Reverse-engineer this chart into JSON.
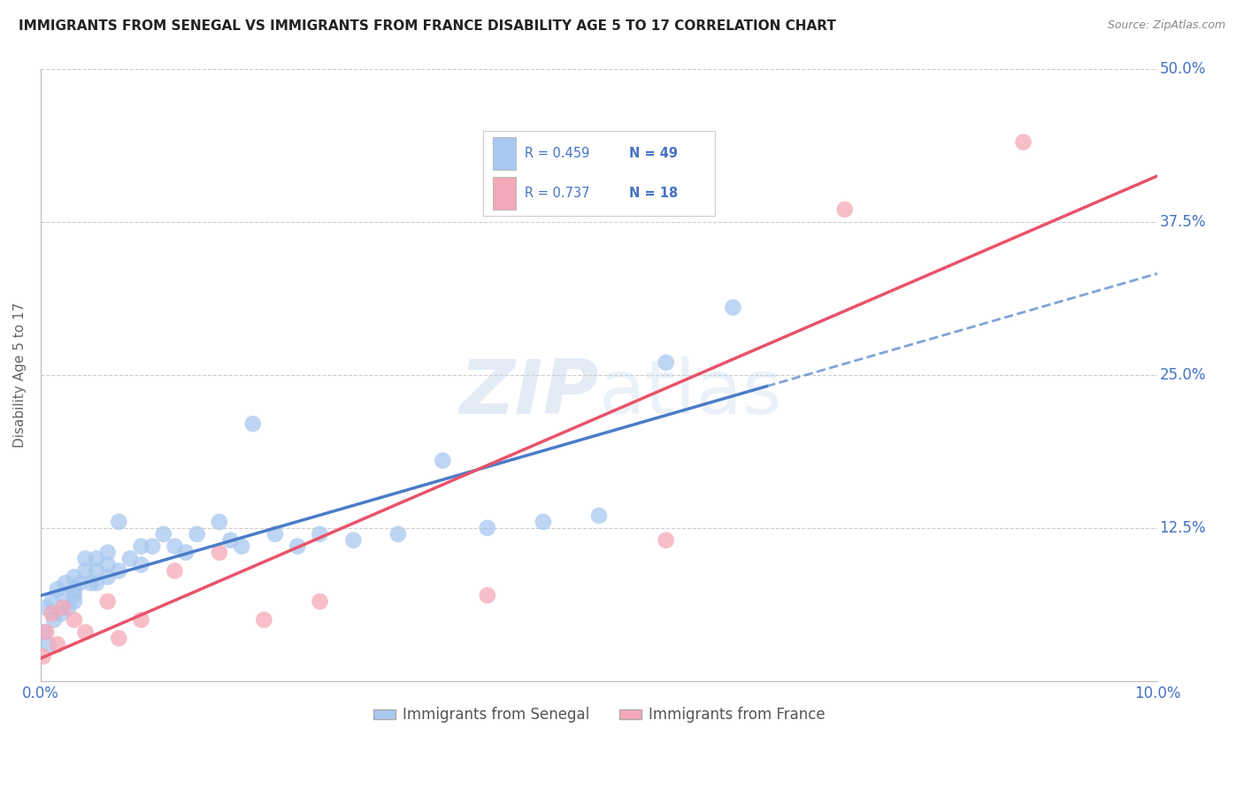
{
  "title": "IMMIGRANTS FROM SENEGAL VS IMMIGRANTS FROM FRANCE DISABILITY AGE 5 TO 17 CORRELATION CHART",
  "source": "Source: ZipAtlas.com",
  "ylabel": "Disability Age 5 to 17",
  "xlim": [
    0.0,
    0.1
  ],
  "ylim": [
    0.0,
    0.5
  ],
  "xticks": [
    0.0,
    0.02,
    0.04,
    0.06,
    0.08,
    0.1
  ],
  "xticklabels": [
    "0.0%",
    "",
    "",
    "",
    "",
    "10.0%"
  ],
  "yticks": [
    0.0,
    0.125,
    0.25,
    0.375,
    0.5
  ],
  "yticklabels": [
    "",
    "12.5%",
    "25.0%",
    "37.5%",
    "50.0%"
  ],
  "blue_color": "#A8C8F0",
  "pink_color": "#F5A8B8",
  "blue_line_color": "#4A7CC7",
  "pink_line_color": "#E8526A",
  "grid_color": "#CCCCCC",
  "watermark_color": "#C8D8F0",
  "legend_R_blue": "R = 0.459",
  "legend_N_blue": "N = 49",
  "legend_R_pink": "R = 0.737",
  "legend_N_pink": "N = 18",
  "axis_label_color": "#4472C4",
  "title_color": "#222222",
  "source_color": "#888888",
  "senegal_x": [
    0.0003,
    0.0005,
    0.0007,
    0.001,
    0.0012,
    0.0015,
    0.0018,
    0.002,
    0.0022,
    0.0025,
    0.003,
    0.003,
    0.003,
    0.003,
    0.0035,
    0.004,
    0.004,
    0.0045,
    0.005,
    0.005,
    0.005,
    0.006,
    0.006,
    0.006,
    0.007,
    0.007,
    0.008,
    0.009,
    0.009,
    0.01,
    0.011,
    0.012,
    0.013,
    0.014,
    0.016,
    0.017,
    0.018,
    0.019,
    0.021,
    0.023,
    0.025,
    0.028,
    0.032,
    0.036,
    0.04,
    0.045,
    0.05,
    0.056,
    0.062
  ],
  "senegal_y": [
    0.04,
    0.06,
    0.03,
    0.065,
    0.05,
    0.075,
    0.055,
    0.07,
    0.08,
    0.06,
    0.065,
    0.075,
    0.085,
    0.07,
    0.08,
    0.09,
    0.1,
    0.08,
    0.09,
    0.08,
    0.1,
    0.085,
    0.095,
    0.105,
    0.09,
    0.13,
    0.1,
    0.11,
    0.095,
    0.11,
    0.12,
    0.11,
    0.105,
    0.12,
    0.13,
    0.115,
    0.11,
    0.21,
    0.12,
    0.11,
    0.12,
    0.115,
    0.12,
    0.18,
    0.125,
    0.13,
    0.135,
    0.26,
    0.305
  ],
  "france_x": [
    0.0002,
    0.0005,
    0.001,
    0.0015,
    0.002,
    0.003,
    0.004,
    0.006,
    0.007,
    0.009,
    0.012,
    0.016,
    0.02,
    0.025,
    0.04,
    0.056,
    0.072,
    0.088
  ],
  "france_y": [
    0.02,
    0.04,
    0.055,
    0.03,
    0.06,
    0.05,
    0.04,
    0.065,
    0.035,
    0.05,
    0.09,
    0.105,
    0.05,
    0.065,
    0.07,
    0.115,
    0.385,
    0.44
  ]
}
